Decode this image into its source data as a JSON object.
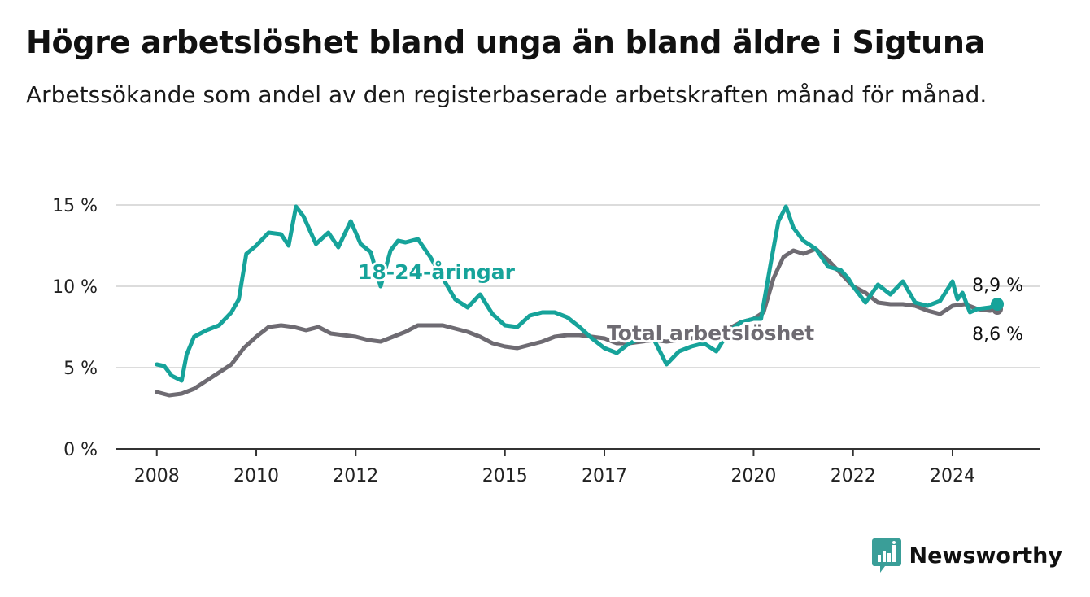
{
  "header": {
    "title": "Högre arbetslöshet bland unga än bland äldre i Sigtuna",
    "subtitle": "Arbetssökande som andel av den registerbaserade arbetskraften månad för månad."
  },
  "brand": {
    "name": "Newsworthy",
    "icon": "bar-chart-bubble-icon",
    "color": "#3a9e98"
  },
  "chart_data": {
    "type": "line",
    "yticks": [
      0,
      5,
      10,
      15
    ],
    "ytick_labels": [
      "0 %",
      "5 %",
      "10 %",
      "15 %"
    ],
    "ylim": [
      0,
      15
    ],
    "xlim": [
      2007.17,
      2025.75
    ],
    "xticks": [
      2008,
      2010,
      2012,
      2015,
      2017,
      2020,
      2022,
      2024
    ],
    "xtick_labels": [
      "2008",
      "2010",
      "2012",
      "2015",
      "2017",
      "2020",
      "2022",
      "2024"
    ],
    "grid": true,
    "series": [
      {
        "name": "18-24-åringar",
        "color": "#16a39a",
        "x": [
          2008.0,
          2008.15,
          2008.3,
          2008.5,
          2008.6,
          2008.75,
          2009.0,
          2009.25,
          2009.5,
          2009.65,
          2009.8,
          2010.0,
          2010.25,
          2010.5,
          2010.65,
          2010.8,
          2010.95,
          2011.2,
          2011.45,
          2011.65,
          2011.9,
          2012.1,
          2012.3,
          2012.5,
          2012.7,
          2012.85,
          2013.0,
          2013.25,
          2013.5,
          2013.75,
          2014.0,
          2014.25,
          2014.5,
          2014.75,
          2015.0,
          2015.25,
          2015.5,
          2015.75,
          2016.0,
          2016.25,
          2016.5,
          2016.75,
          2017.0,
          2017.25,
          2017.5,
          2017.75,
          2018.0,
          2018.25,
          2018.5,
          2018.75,
          2019.0,
          2019.25,
          2019.5,
          2019.75,
          2020.0,
          2020.15,
          2020.35,
          2020.5,
          2020.65,
          2020.8,
          2021.0,
          2021.25,
          2021.5,
          2021.75,
          2021.9,
          2022.0,
          2022.25,
          2022.5,
          2022.75,
          2023.0,
          2023.25,
          2023.5,
          2023.75,
          2024.0,
          2024.1,
          2024.2,
          2024.35,
          2024.5,
          2024.75,
          2024.9
        ],
        "y": [
          5.2,
          5.1,
          4.5,
          4.2,
          5.8,
          6.9,
          7.3,
          7.6,
          8.4,
          9.2,
          12.0,
          12.5,
          13.3,
          13.2,
          12.5,
          14.9,
          14.3,
          12.6,
          13.3,
          12.4,
          14.0,
          12.6,
          12.1,
          10.0,
          12.2,
          12.8,
          12.7,
          12.9,
          11.8,
          10.5,
          9.2,
          8.7,
          9.5,
          8.3,
          7.6,
          7.5,
          8.2,
          8.4,
          8.4,
          8.1,
          7.5,
          6.8,
          6.2,
          5.9,
          6.5,
          6.8,
          6.7,
          5.2,
          6.0,
          6.3,
          6.5,
          6.0,
          7.2,
          7.8,
          8.0,
          8.0,
          11.5,
          14.0,
          14.9,
          13.6,
          12.8,
          12.3,
          11.2,
          11.0,
          10.5,
          10.0,
          9.0,
          10.1,
          9.5,
          10.3,
          9.0,
          8.8,
          9.1,
          10.3,
          9.2,
          9.6,
          8.4,
          8.6,
          8.7,
          8.9
        ]
      },
      {
        "name": "Total arbetslöshet",
        "color": "#6e6b72",
        "x": [
          2008.0,
          2008.25,
          2008.5,
          2008.75,
          2009.0,
          2009.25,
          2009.5,
          2009.75,
          2010.0,
          2010.25,
          2010.5,
          2010.75,
          2011.0,
          2011.25,
          2011.5,
          2011.75,
          2012.0,
          2012.25,
          2012.5,
          2012.75,
          2013.0,
          2013.25,
          2013.5,
          2013.75,
          2014.0,
          2014.25,
          2014.5,
          2014.75,
          2015.0,
          2015.25,
          2015.5,
          2015.75,
          2016.0,
          2016.25,
          2016.5,
          2016.75,
          2017.0,
          2017.25,
          2017.5,
          2017.75,
          2018.0,
          2018.25,
          2018.5,
          2018.75,
          2019.0,
          2019.25,
          2019.5,
          2019.75,
          2020.0,
          2020.2,
          2020.4,
          2020.6,
          2020.8,
          2021.0,
          2021.25,
          2021.5,
          2021.75,
          2022.0,
          2022.25,
          2022.5,
          2022.75,
          2023.0,
          2023.25,
          2023.5,
          2023.75,
          2024.0,
          2024.25,
          2024.5,
          2024.75,
          2024.9
        ],
        "y": [
          3.5,
          3.3,
          3.4,
          3.7,
          4.2,
          4.7,
          5.2,
          6.2,
          6.9,
          7.5,
          7.6,
          7.5,
          7.3,
          7.5,
          7.1,
          7.0,
          6.9,
          6.7,
          6.6,
          6.9,
          7.2,
          7.6,
          7.6,
          7.6,
          7.4,
          7.2,
          6.9,
          6.5,
          6.3,
          6.2,
          6.4,
          6.6,
          6.9,
          7.0,
          7.0,
          6.9,
          6.8,
          6.5,
          6.5,
          6.6,
          6.7,
          6.6,
          6.7,
          6.8,
          7.0,
          7.1,
          7.4,
          7.8,
          8.0,
          8.4,
          10.5,
          11.8,
          12.2,
          12.0,
          12.3,
          11.6,
          10.8,
          10.0,
          9.6,
          9.0,
          8.9,
          8.9,
          8.8,
          8.5,
          8.3,
          8.8,
          8.9,
          8.6,
          8.5,
          8.6
        ]
      }
    ],
    "annotations": {
      "young_label": "18-24-åringar",
      "total_label": "Total arbetslöshet",
      "young_end": "8,9 %",
      "total_end": "8,6 %"
    }
  }
}
